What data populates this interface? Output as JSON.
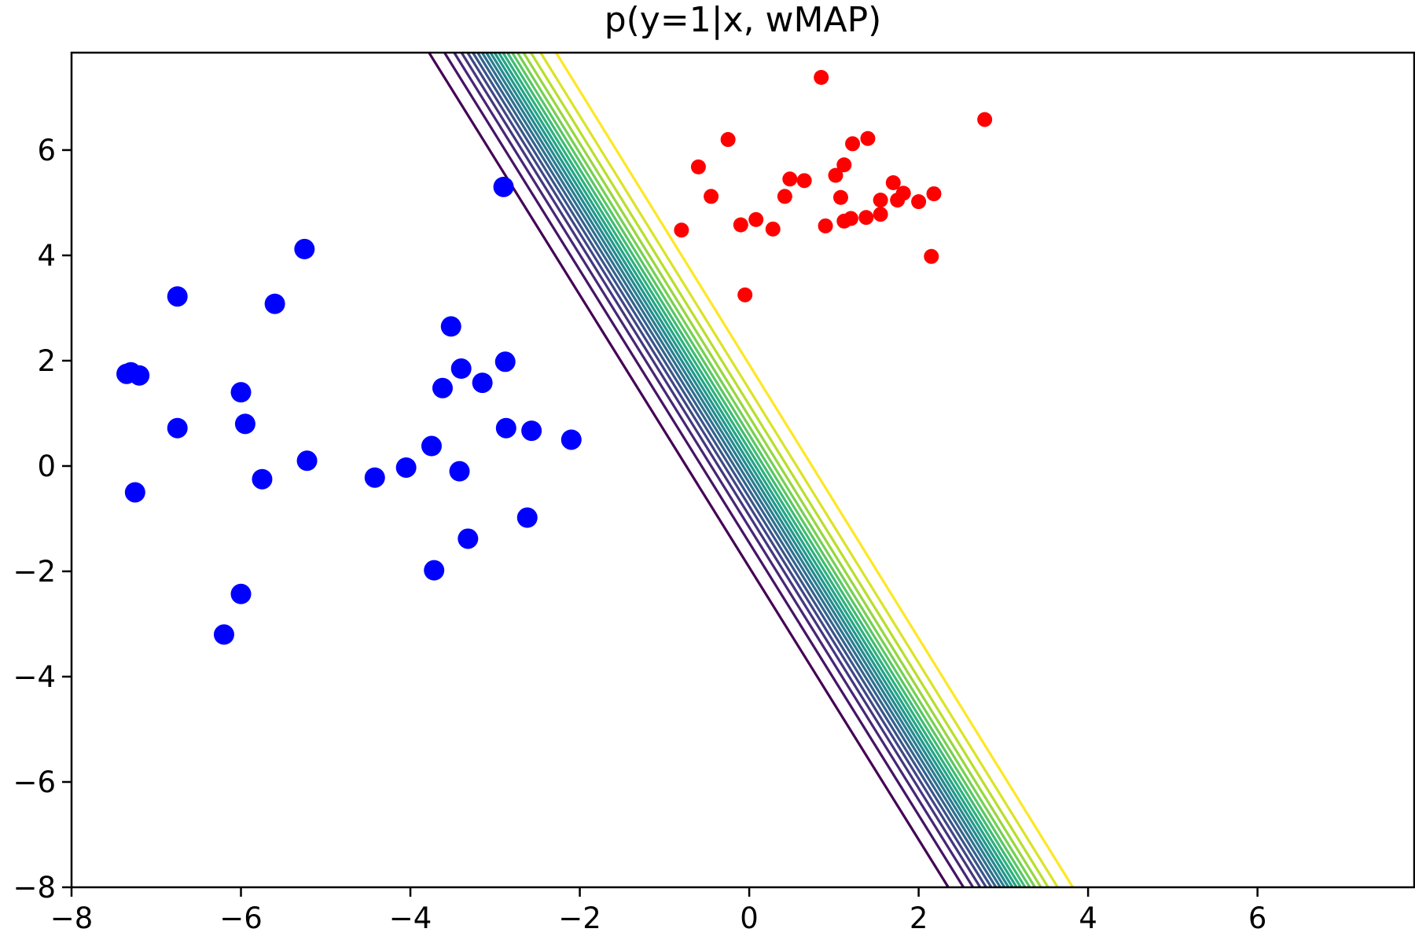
{
  "chart_data": {
    "type": "scatter",
    "title": "p(y=1|x, wMAP)",
    "xlabel": "",
    "ylabel": "",
    "xlim": [
      -8,
      7.85
    ],
    "ylim": [
      -8,
      7.85
    ],
    "xticks": [
      -8,
      -6,
      -4,
      -2,
      0,
      2,
      4,
      6
    ],
    "yticks": [
      -8,
      -6,
      -4,
      -2,
      0,
      2,
      4,
      6
    ],
    "xtick_labels": [
      "−8",
      "−6",
      "−4",
      "−2",
      "0",
      "2",
      "4",
      "6"
    ],
    "ytick_labels": [
      "−8",
      "−6",
      "−4",
      "−2",
      "0",
      "2",
      "4",
      "6"
    ],
    "grid": false,
    "colors": {
      "class0": "#0000ff",
      "class1": "#ff0000",
      "axes": "#000000",
      "background": "#ffffff"
    },
    "series": [
      {
        "color": "#0000ff",
        "marker": "large-dot",
        "points": [
          [
            -7.35,
            1.75
          ],
          [
            -7.3,
            1.78
          ],
          [
            -7.2,
            1.72
          ],
          [
            -7.25,
            -0.5
          ],
          [
            -6.75,
            3.22
          ],
          [
            -6.75,
            0.72
          ],
          [
            -6.0,
            1.4
          ],
          [
            -5.95,
            0.8
          ],
          [
            -5.6,
            3.08
          ],
          [
            -5.75,
            -0.25
          ],
          [
            -5.25,
            4.12
          ],
          [
            -5.22,
            0.1
          ],
          [
            -6.0,
            -2.43
          ],
          [
            -6.2,
            -3.2
          ],
          [
            -4.42,
            -0.22
          ],
          [
            -4.05,
            -0.03
          ],
          [
            -3.75,
            0.38
          ],
          [
            -3.62,
            1.48
          ],
          [
            -3.52,
            2.65
          ],
          [
            -3.4,
            1.85
          ],
          [
            -3.15,
            1.58
          ],
          [
            -3.42,
            -0.1
          ],
          [
            -3.32,
            -1.38
          ],
          [
            -3.72,
            -1.98
          ],
          [
            -2.88,
            1.98
          ],
          [
            -2.87,
            0.72
          ],
          [
            -2.57,
            0.67
          ],
          [
            -2.62,
            -0.98
          ],
          [
            -2.1,
            0.5
          ],
          [
            -2.9,
            5.3
          ]
        ]
      },
      {
        "color": "#ff0000",
        "marker": "small-dot",
        "points": [
          [
            -0.8,
            4.48
          ],
          [
            -0.6,
            5.68
          ],
          [
            -0.45,
            5.12
          ],
          [
            -0.25,
            6.2
          ],
          [
            -0.1,
            4.58
          ],
          [
            -0.05,
            3.25
          ],
          [
            0.08,
            4.68
          ],
          [
            0.28,
            4.5
          ],
          [
            0.42,
            5.12
          ],
          [
            0.48,
            5.45
          ],
          [
            0.65,
            5.42
          ],
          [
            0.85,
            7.38
          ],
          [
            0.9,
            4.56
          ],
          [
            1.02,
            5.52
          ],
          [
            1.08,
            5.1
          ],
          [
            1.12,
            4.65
          ],
          [
            1.12,
            5.72
          ],
          [
            1.2,
            4.7
          ],
          [
            1.22,
            6.12
          ],
          [
            1.38,
            4.72
          ],
          [
            1.4,
            6.22
          ],
          [
            1.55,
            4.78
          ],
          [
            1.55,
            5.05
          ],
          [
            1.7,
            5.38
          ],
          [
            1.75,
            5.05
          ],
          [
            1.82,
            5.18
          ],
          [
            2.0,
            5.02
          ],
          [
            2.15,
            3.98
          ],
          [
            2.18,
            5.17
          ],
          [
            2.78,
            6.58
          ]
        ]
      }
    ],
    "contour": {
      "kind": "parallel-lines",
      "colormap": "viridis",
      "colormap_stops": [
        "#440154",
        "#482878",
        "#3e4989",
        "#31688e",
        "#26828e",
        "#1f9e89",
        "#35b779",
        "#6ece58",
        "#b5de2b",
        "#fde725"
      ],
      "levels": 20,
      "level_range": [
        0.05,
        0.95
      ],
      "lines": [
        {
          "level": 0.05,
          "x_at_top": -3.78,
          "x_at_bottom": 2.35
        },
        {
          "level": 0.95,
          "x_at_top": -2.28,
          "x_at_bottom": 3.82
        }
      ]
    }
  }
}
